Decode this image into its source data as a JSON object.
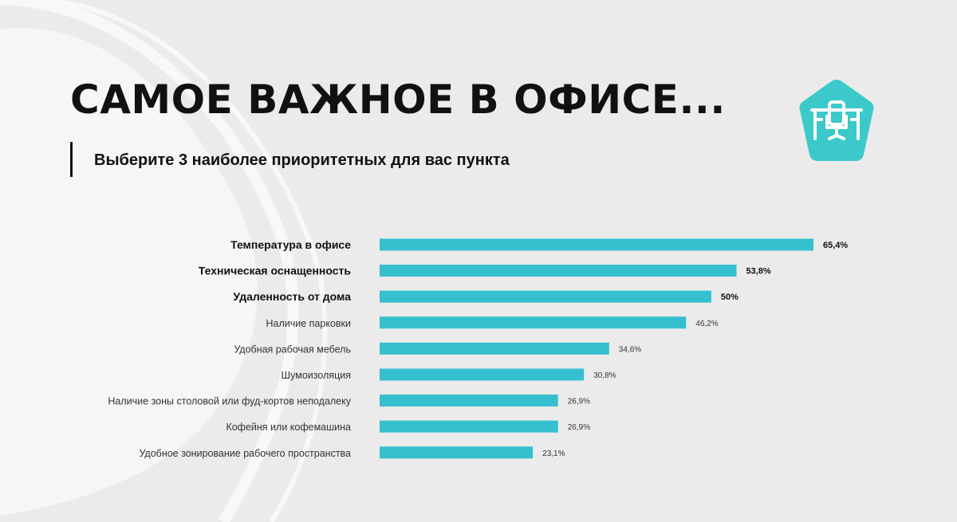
{
  "header": {
    "title": "САМОЕ ВАЖНОЕ В ОФИСЕ...",
    "subtitle": "Выберите 3 наиболее приоритетных для вас пункта"
  },
  "logo": {
    "icon": "office-desk-chair-icon",
    "color": "#3cc9c9"
  },
  "colors": {
    "bar": "#36bfcf",
    "background": "#ebebeb",
    "text": "#111111"
  },
  "chart_data": {
    "type": "bar",
    "orientation": "horizontal",
    "categories": [
      "Температура в офисе",
      "Техническая оснащенность",
      "Удаленность  от дома",
      "Наличие парковки",
      "Удобная рабочая мебель",
      "Шумоизоляция",
      "Наличие зоны столовой или фуд-кортов неподалеку",
      "Кофейня или кофемашина",
      "Удобное зонирование рабочего пространства"
    ],
    "values": [
      65.4,
      53.8,
      50,
      46.2,
      34.6,
      30.8,
      26.9,
      26.9,
      23.1
    ],
    "value_labels": [
      "65,4%",
      "53,8%",
      "50%",
      "46,2%",
      "34,6%",
      "30,8%",
      "26,9%",
      "26,9%",
      "23,1%"
    ],
    "highlighted": [
      true,
      true,
      true,
      false,
      false,
      false,
      false,
      false,
      false
    ],
    "xlim": [
      0,
      65.4
    ]
  }
}
